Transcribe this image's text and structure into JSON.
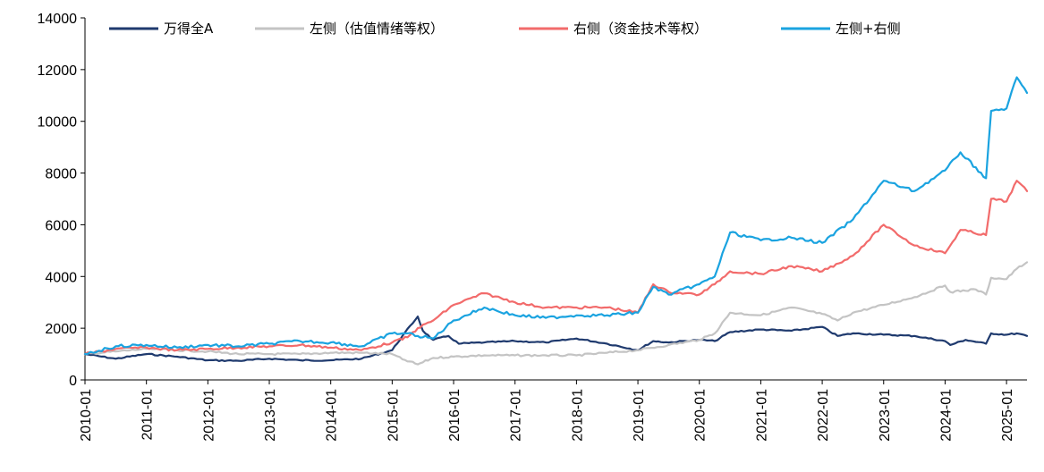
{
  "chart_data": {
    "type": "line",
    "title": "",
    "xlabel": "",
    "ylabel": "",
    "ylim": [
      0,
      14000
    ],
    "yticks": [
      0,
      2000,
      4000,
      6000,
      8000,
      10000,
      12000,
      14000
    ],
    "xticks": [
      "2010-01",
      "2011-01",
      "2012-01",
      "2013-01",
      "2014-01",
      "2015-01",
      "2016-01",
      "2017-01",
      "2018-01",
      "2019-01",
      "2020-01",
      "2021-01",
      "2022-01",
      "2023-01",
      "2024-01",
      "2025-01"
    ],
    "xlim": [
      "2010-01",
      "2025-05"
    ],
    "grid": false,
    "legend_position": "top",
    "series": [
      {
        "name": "万得全A",
        "color": "#1f3a6e",
        "points": [
          [
            "2010-01",
            1000
          ],
          [
            "2010-07",
            820
          ],
          [
            "2011-01",
            1000
          ],
          [
            "2011-07",
            900
          ],
          [
            "2012-01",
            760
          ],
          [
            "2012-07",
            740
          ],
          [
            "2013-01",
            820
          ],
          [
            "2013-07",
            760
          ],
          [
            "2014-01",
            760
          ],
          [
            "2014-07",
            820
          ],
          [
            "2015-01",
            1150
          ],
          [
            "2015-03",
            1700
          ],
          [
            "2015-06",
            2450
          ],
          [
            "2015-07",
            1900
          ],
          [
            "2015-09",
            1550
          ],
          [
            "2015-12",
            1700
          ],
          [
            "2016-02",
            1400
          ],
          [
            "2016-07",
            1450
          ],
          [
            "2017-01",
            1500
          ],
          [
            "2017-07",
            1450
          ],
          [
            "2018-01",
            1600
          ],
          [
            "2018-07",
            1400
          ],
          [
            "2019-01",
            1150
          ],
          [
            "2019-04",
            1500
          ],
          [
            "2019-07",
            1450
          ],
          [
            "2020-01",
            1550
          ],
          [
            "2020-04",
            1500
          ],
          [
            "2020-07",
            1850
          ],
          [
            "2021-01",
            1950
          ],
          [
            "2021-07",
            1900
          ],
          [
            "2022-01",
            2050
          ],
          [
            "2022-04",
            1700
          ],
          [
            "2022-07",
            1800
          ],
          [
            "2023-01",
            1750
          ],
          [
            "2023-07",
            1700
          ],
          [
            "2024-01",
            1500
          ],
          [
            "2024-02",
            1350
          ],
          [
            "2024-05",
            1550
          ],
          [
            "2024-09",
            1400
          ],
          [
            "2024-10",
            1800
          ],
          [
            "2025-01",
            1750
          ],
          [
            "2025-03",
            1800
          ],
          [
            "2025-05",
            1700
          ]
        ]
      },
      {
        "name": "左侧（估值情绪等权）",
        "color": "#c4c4c4",
        "points": [
          [
            "2010-01",
            1000
          ],
          [
            "2010-07",
            1100
          ],
          [
            "2011-01",
            1200
          ],
          [
            "2011-07",
            1150
          ],
          [
            "2012-01",
            1100
          ],
          [
            "2012-07",
            1000
          ],
          [
            "2013-01",
            1000
          ],
          [
            "2013-07",
            1000
          ],
          [
            "2014-01",
            1050
          ],
          [
            "2014-07",
            1050
          ],
          [
            "2015-01",
            1000
          ],
          [
            "2015-03",
            800
          ],
          [
            "2015-06",
            600
          ],
          [
            "2015-09",
            850
          ],
          [
            "2016-01",
            900
          ],
          [
            "2016-07",
            950
          ],
          [
            "2017-01",
            950
          ],
          [
            "2017-07",
            950
          ],
          [
            "2018-01",
            950
          ],
          [
            "2018-07",
            1050
          ],
          [
            "2019-01",
            1150
          ],
          [
            "2019-07",
            1350
          ],
          [
            "2020-01",
            1550
          ],
          [
            "2020-04",
            1800
          ],
          [
            "2020-07",
            2600
          ],
          [
            "2021-01",
            2500
          ],
          [
            "2021-07",
            2800
          ],
          [
            "2022-01",
            2550
          ],
          [
            "2022-04",
            2300
          ],
          [
            "2022-07",
            2600
          ],
          [
            "2023-01",
            2900
          ],
          [
            "2023-07",
            3200
          ],
          [
            "2024-01",
            3650
          ],
          [
            "2024-02",
            3400
          ],
          [
            "2024-07",
            3500
          ],
          [
            "2024-09",
            3300
          ],
          [
            "2024-10",
            3950
          ],
          [
            "2025-01",
            3900
          ],
          [
            "2025-03",
            4300
          ],
          [
            "2025-05",
            4550
          ]
        ]
      },
      {
        "name": "右侧（资金技术等权）",
        "color": "#f26b6b",
        "points": [
          [
            "2010-01",
            1000
          ],
          [
            "2010-07",
            1200
          ],
          [
            "2011-01",
            1250
          ],
          [
            "2011-07",
            1150
          ],
          [
            "2012-01",
            1200
          ],
          [
            "2012-07",
            1250
          ],
          [
            "2013-01",
            1300
          ],
          [
            "2013-07",
            1350
          ],
          [
            "2014-01",
            1250
          ],
          [
            "2014-07",
            1150
          ],
          [
            "2015-01",
            1450
          ],
          [
            "2015-04",
            1650
          ],
          [
            "2015-06",
            2000
          ],
          [
            "2015-09",
            2300
          ],
          [
            "2016-01",
            2900
          ],
          [
            "2016-07",
            3350
          ],
          [
            "2017-01",
            3000
          ],
          [
            "2017-07",
            2800
          ],
          [
            "2018-01",
            2800
          ],
          [
            "2018-07",
            2800
          ],
          [
            "2019-01",
            2600
          ],
          [
            "2019-04",
            3700
          ],
          [
            "2019-07",
            3400
          ],
          [
            "2020-01",
            3300
          ],
          [
            "2020-04",
            3700
          ],
          [
            "2020-07",
            4200
          ],
          [
            "2021-01",
            4100
          ],
          [
            "2021-07",
            4400
          ],
          [
            "2022-01",
            4200
          ],
          [
            "2022-07",
            4800
          ],
          [
            "2023-01",
            6000
          ],
          [
            "2023-07",
            5200
          ],
          [
            "2024-01",
            4900
          ],
          [
            "2024-04",
            5800
          ],
          [
            "2024-09",
            5600
          ],
          [
            "2024-10",
            7000
          ],
          [
            "2025-01",
            6900
          ],
          [
            "2025-03",
            7700
          ],
          [
            "2025-05",
            7300
          ]
        ]
      },
      {
        "name": "左侧+右侧",
        "color": "#1aa3e0",
        "points": [
          [
            "2010-01",
            1000
          ],
          [
            "2010-07",
            1300
          ],
          [
            "2011-01",
            1350
          ],
          [
            "2011-07",
            1250
          ],
          [
            "2012-01",
            1350
          ],
          [
            "2012-07",
            1300
          ],
          [
            "2013-01",
            1400
          ],
          [
            "2013-07",
            1500
          ],
          [
            "2014-01",
            1450
          ],
          [
            "2014-07",
            1300
          ],
          [
            "2015-01",
            1800
          ],
          [
            "2015-04",
            1800
          ],
          [
            "2015-06",
            1700
          ],
          [
            "2015-09",
            1600
          ],
          [
            "2016-01",
            2300
          ],
          [
            "2016-07",
            2800
          ],
          [
            "2017-01",
            2500
          ],
          [
            "2017-07",
            2400
          ],
          [
            "2018-01",
            2500
          ],
          [
            "2018-07",
            2500
          ],
          [
            "2019-01",
            2600
          ],
          [
            "2019-04",
            3600
          ],
          [
            "2019-07",
            3300
          ],
          [
            "2020-01",
            3700
          ],
          [
            "2020-04",
            4000
          ],
          [
            "2020-07",
            5700
          ],
          [
            "2021-01",
            5400
          ],
          [
            "2021-07",
            5500
          ],
          [
            "2022-01",
            5300
          ],
          [
            "2022-07",
            6200
          ],
          [
            "2023-01",
            7700
          ],
          [
            "2023-07",
            7300
          ],
          [
            "2024-01",
            8100
          ],
          [
            "2024-04",
            8800
          ],
          [
            "2024-09",
            7800
          ],
          [
            "2024-10",
            10400
          ],
          [
            "2025-01",
            10500
          ],
          [
            "2025-03",
            11700
          ],
          [
            "2025-05",
            11100
          ]
        ]
      }
    ]
  }
}
